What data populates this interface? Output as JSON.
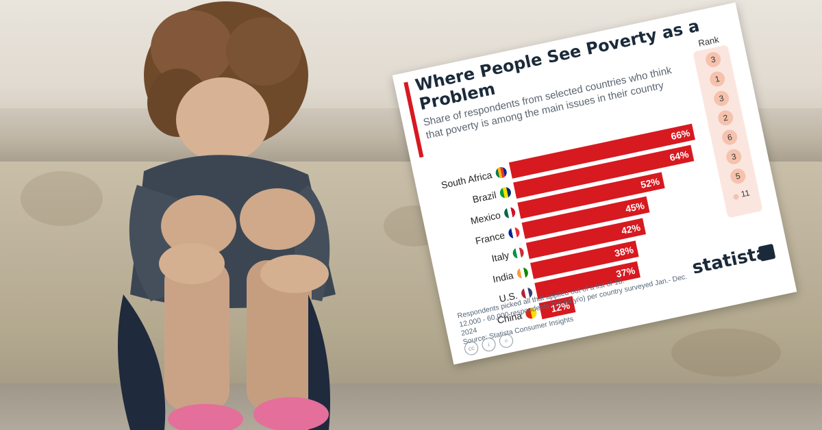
{
  "chart_data": {
    "type": "bar",
    "title": "Where People See Poverty as a Problem",
    "subtitle": "Share of respondents from selected countries who think that poverty is among the main issues in their country",
    "categories": [
      "South Africa",
      "Brazil",
      "Mexico",
      "France",
      "Italy",
      "India",
      "U.S.",
      "China"
    ],
    "values": [
      66,
      64,
      52,
      45,
      42,
      38,
      37,
      12
    ],
    "value_labels": [
      "66%",
      "64%",
      "52%",
      "45%",
      "42%",
      "38%",
      "37%",
      "12%"
    ],
    "xlim": [
      0,
      70
    ],
    "orientation": "horizontal",
    "grid": false,
    "bar_color": "#d71920",
    "rank_header": "Rank",
    "ranks": [
      "3",
      "1",
      "3",
      "2",
      "6",
      "3",
      "5",
      "11"
    ],
    "footnote": [
      "Respondents picked all that applied out of a list of 18.",
      "12,000 - 60,000 respondents (18-64 y/o) per country surveyed Jan.- Dec. 2024",
      "Source: Statista Consumer Insights"
    ],
    "brand": "statista"
  },
  "colors": {
    "accent": "#d71920",
    "title": "#1b2a3a",
    "rank_bg": "#fbe6df",
    "rank_dot": "#f5c2ad"
  },
  "icons": [
    "south-africa-flag-icon",
    "brazil-flag-icon",
    "mexico-flag-icon",
    "france-flag-icon",
    "italy-flag-icon",
    "india-flag-icon",
    "us-flag-icon",
    "china-flag-icon",
    "cc-icon",
    "by-icon",
    "nd-icon",
    "statista-logo-icon"
  ]
}
